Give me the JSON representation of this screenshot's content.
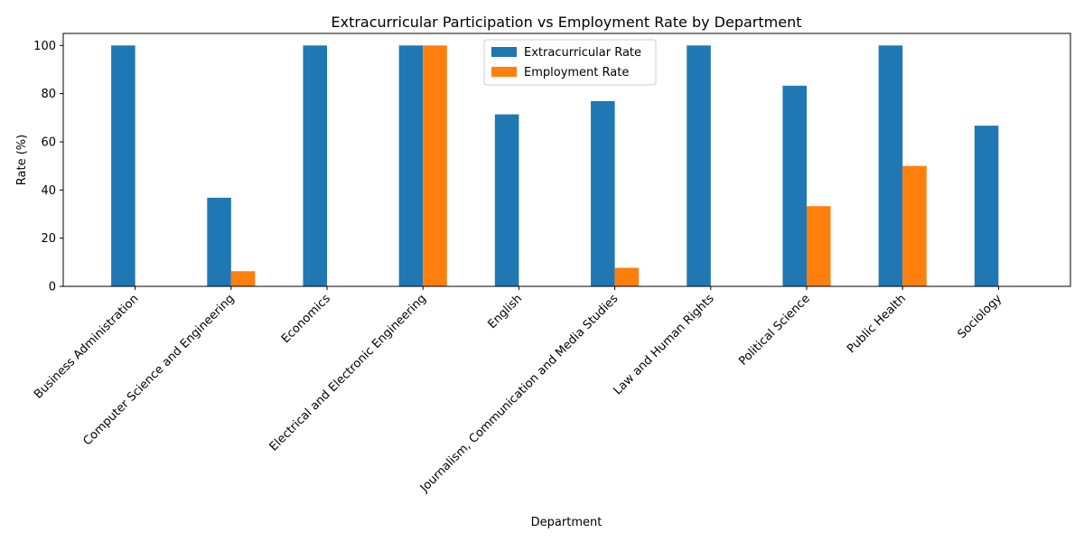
{
  "chart_data": {
    "type": "bar",
    "title": "Extracurricular Participation vs Employment Rate by Department",
    "xlabel": "Department",
    "ylabel": "Rate (%)",
    "ylim": [
      0,
      105
    ],
    "yticks": [
      0,
      20,
      40,
      60,
      80,
      100
    ],
    "grid": false,
    "legend_position": "top-center",
    "categories": [
      "Business Administration",
      "Computer Science and Engineering",
      "Economics",
      "Electrical and Electronic Engineering",
      "English",
      "Journalism, Communication and Media Studies",
      "Law and Human Rights",
      "Political Science",
      "Public Health",
      "Sociology"
    ],
    "series": [
      {
        "name": "Extracurricular Rate",
        "color": "#1f77b4",
        "values": [
          100,
          36.8,
          100,
          100,
          71.4,
          76.9,
          100,
          83.3,
          100,
          66.7
        ]
      },
      {
        "name": "Employment Rate",
        "color": "#ff7f0e",
        "values": [
          0,
          6.3,
          0,
          100,
          0,
          7.7,
          0,
          33.3,
          50,
          0
        ]
      }
    ]
  }
}
